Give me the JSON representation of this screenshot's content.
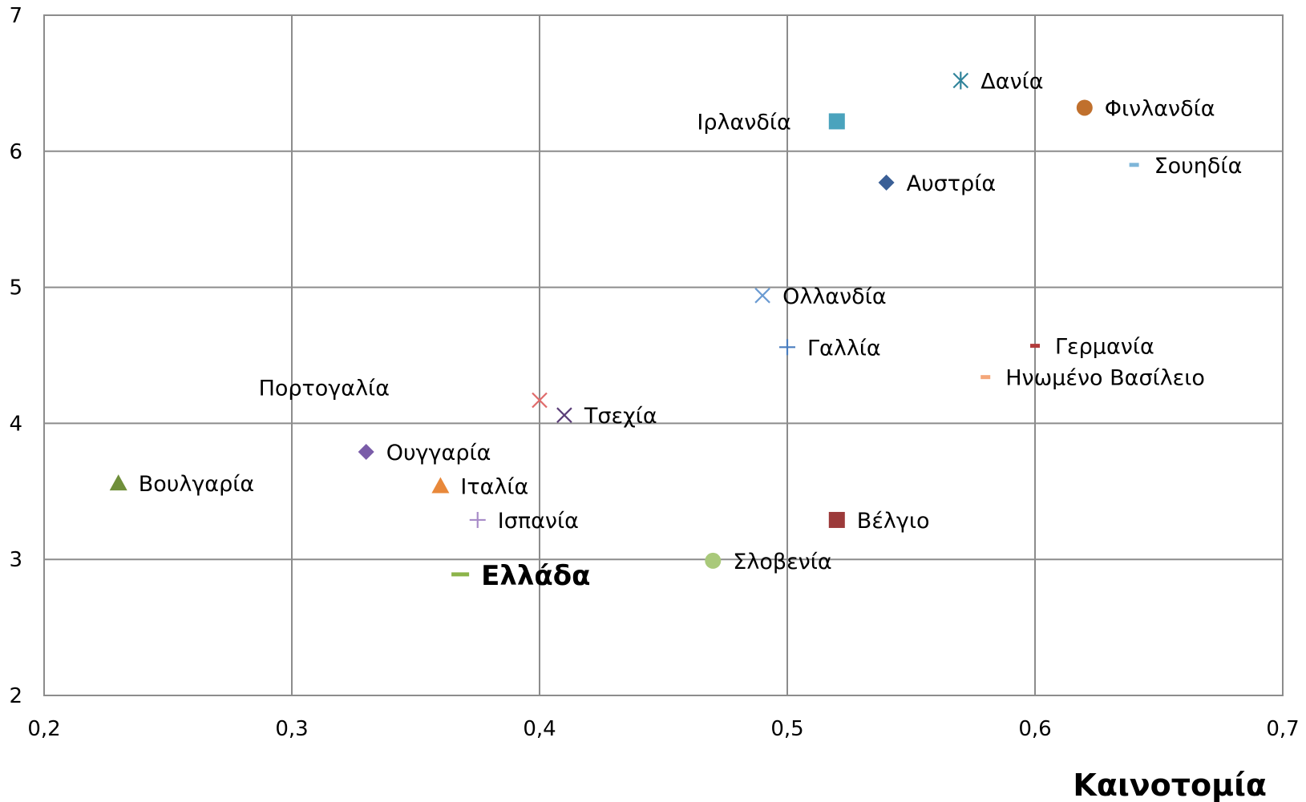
{
  "chart_data": {
    "type": "scatter",
    "xlabel": "Καινοτομία",
    "ylabel": "",
    "xlim": [
      0.2,
      0.7
    ],
    "ylim": [
      2,
      7
    ],
    "xticks": [
      "0,2",
      "0,3",
      "0,4",
      "0,5",
      "0,6",
      "0,7"
    ],
    "yticks": [
      "2",
      "3",
      "4",
      "5",
      "6",
      "7"
    ],
    "xtick_values": [
      0.2,
      0.3,
      0.4,
      0.5,
      0.6,
      0.7
    ],
    "ytick_values": [
      2,
      3,
      4,
      5,
      6,
      7
    ],
    "grid": true,
    "points": [
      {
        "label": "Δανία",
        "x": 0.57,
        "y": 6.52,
        "marker": "asterisk",
        "color": "#31849b"
      },
      {
        "label": "Φινλανδία",
        "x": 0.62,
        "y": 6.32,
        "marker": "circle",
        "color": "#c0702d"
      },
      {
        "label": "Ιρλανδία",
        "x": 0.52,
        "y": 6.22,
        "marker": "square",
        "color": "#4aa3bd"
      },
      {
        "label": "Σουηδία",
        "x": 0.64,
        "y": 5.9,
        "marker": "dash",
        "color": "#7eb6d9"
      },
      {
        "label": "Αυστρία",
        "x": 0.54,
        "y": 5.77,
        "marker": "diamond",
        "color": "#3a5f96"
      },
      {
        "label": "Ολλανδία",
        "x": 0.49,
        "y": 4.94,
        "marker": "x",
        "color": "#6b9bd2"
      },
      {
        "label": "Γαλλία",
        "x": 0.5,
        "y": 4.56,
        "marker": "plus",
        "color": "#4a7ebf"
      },
      {
        "label": "Γερμανία",
        "x": 0.6,
        "y": 4.57,
        "marker": "dash",
        "color": "#b23b3b"
      },
      {
        "label": "Ηνωμένο Βασίλειο",
        "x": 0.58,
        "y": 4.34,
        "marker": "dash",
        "color": "#f4a77a"
      },
      {
        "label": "Πορτογαλία",
        "x": 0.4,
        "y": 4.17,
        "marker": "x",
        "color": "#e06a6a"
      },
      {
        "label": "Τσεχία",
        "x": 0.41,
        "y": 4.06,
        "marker": "x",
        "color": "#5b3e78"
      },
      {
        "label": "Ουγγαρία",
        "x": 0.33,
        "y": 3.79,
        "marker": "diamond",
        "color": "#7a5ca8"
      },
      {
        "label": "Βουλγαρία",
        "x": 0.23,
        "y": 3.56,
        "marker": "triangle",
        "color": "#6f8f3a"
      },
      {
        "label": "Ιταλία",
        "x": 0.36,
        "y": 3.54,
        "marker": "triangle",
        "color": "#e8883a"
      },
      {
        "label": "Ισπανία",
        "x": 0.375,
        "y": 3.29,
        "marker": "plus",
        "color": "#a88cc8"
      },
      {
        "label": "Βέλγιο",
        "x": 0.52,
        "y": 3.29,
        "marker": "square",
        "color": "#9c3a3a"
      },
      {
        "label": "Σλοβενία",
        "x": 0.47,
        "y": 2.99,
        "marker": "circle",
        "color": "#a9c97a"
      },
      {
        "label": "Ελλάδα",
        "x": 0.368,
        "y": 2.89,
        "marker": "dash",
        "color": "#8cb44a",
        "highlight": true,
        "label_color": "#7030a0"
      }
    ]
  }
}
